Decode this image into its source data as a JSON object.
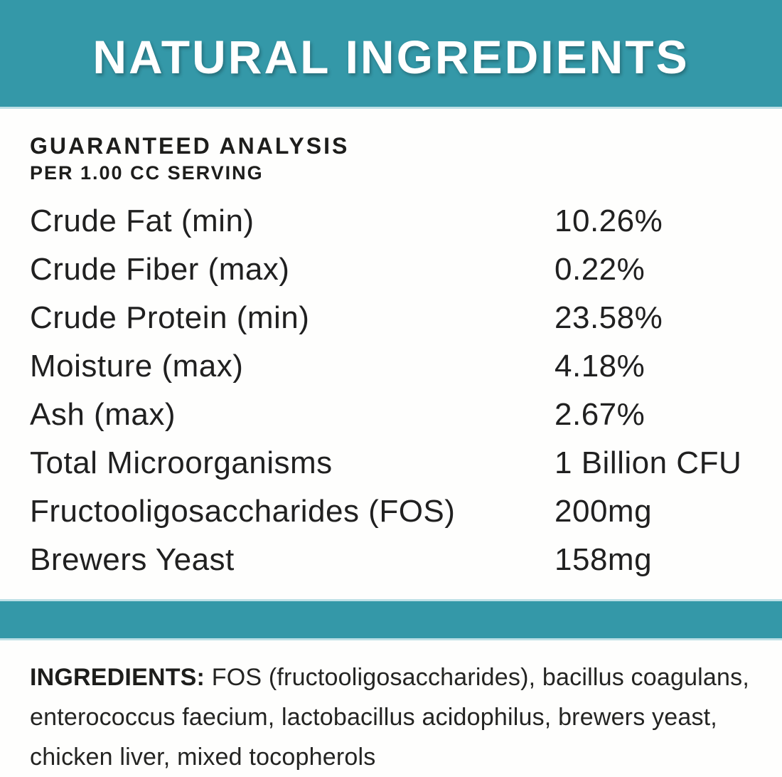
{
  "header": {
    "title": "NATURAL INGREDIENTS"
  },
  "analysis": {
    "heading": "GUARANTEED ANALYSIS",
    "subheading": "PER 1.00 CC SERVING",
    "rows": [
      {
        "label": "Crude Fat (min)",
        "value": "10.26%"
      },
      {
        "label": "Crude Fiber (max)",
        "value": "0.22%"
      },
      {
        "label": "Crude Protein (min)",
        "value": "23.58%"
      },
      {
        "label": "Moisture (max)",
        "value": "4.18%"
      },
      {
        "label": "Ash (max)",
        "value": "2.67%"
      },
      {
        "label": "Total Microorganisms",
        "value": "1 Billion CFU"
      },
      {
        "label": "Fructooligosaccharides (FOS)",
        "value": "200mg"
      },
      {
        "label": "Brewers Yeast",
        "value": "158mg"
      }
    ]
  },
  "ingredients": {
    "label": "INGREDIENTS:",
    "text": "FOS (fructooligosaccharides), bacillus coagulans, enterococcus faecium, lactobacillus acidophilus, brewers yeast, chicken liver, mixed tocopherols"
  },
  "colors": {
    "teal_banner": "#3498a8",
    "teal_light_edge": "#bee0e6",
    "text_dark": "#1d1d1b",
    "background": "#fefefd"
  }
}
